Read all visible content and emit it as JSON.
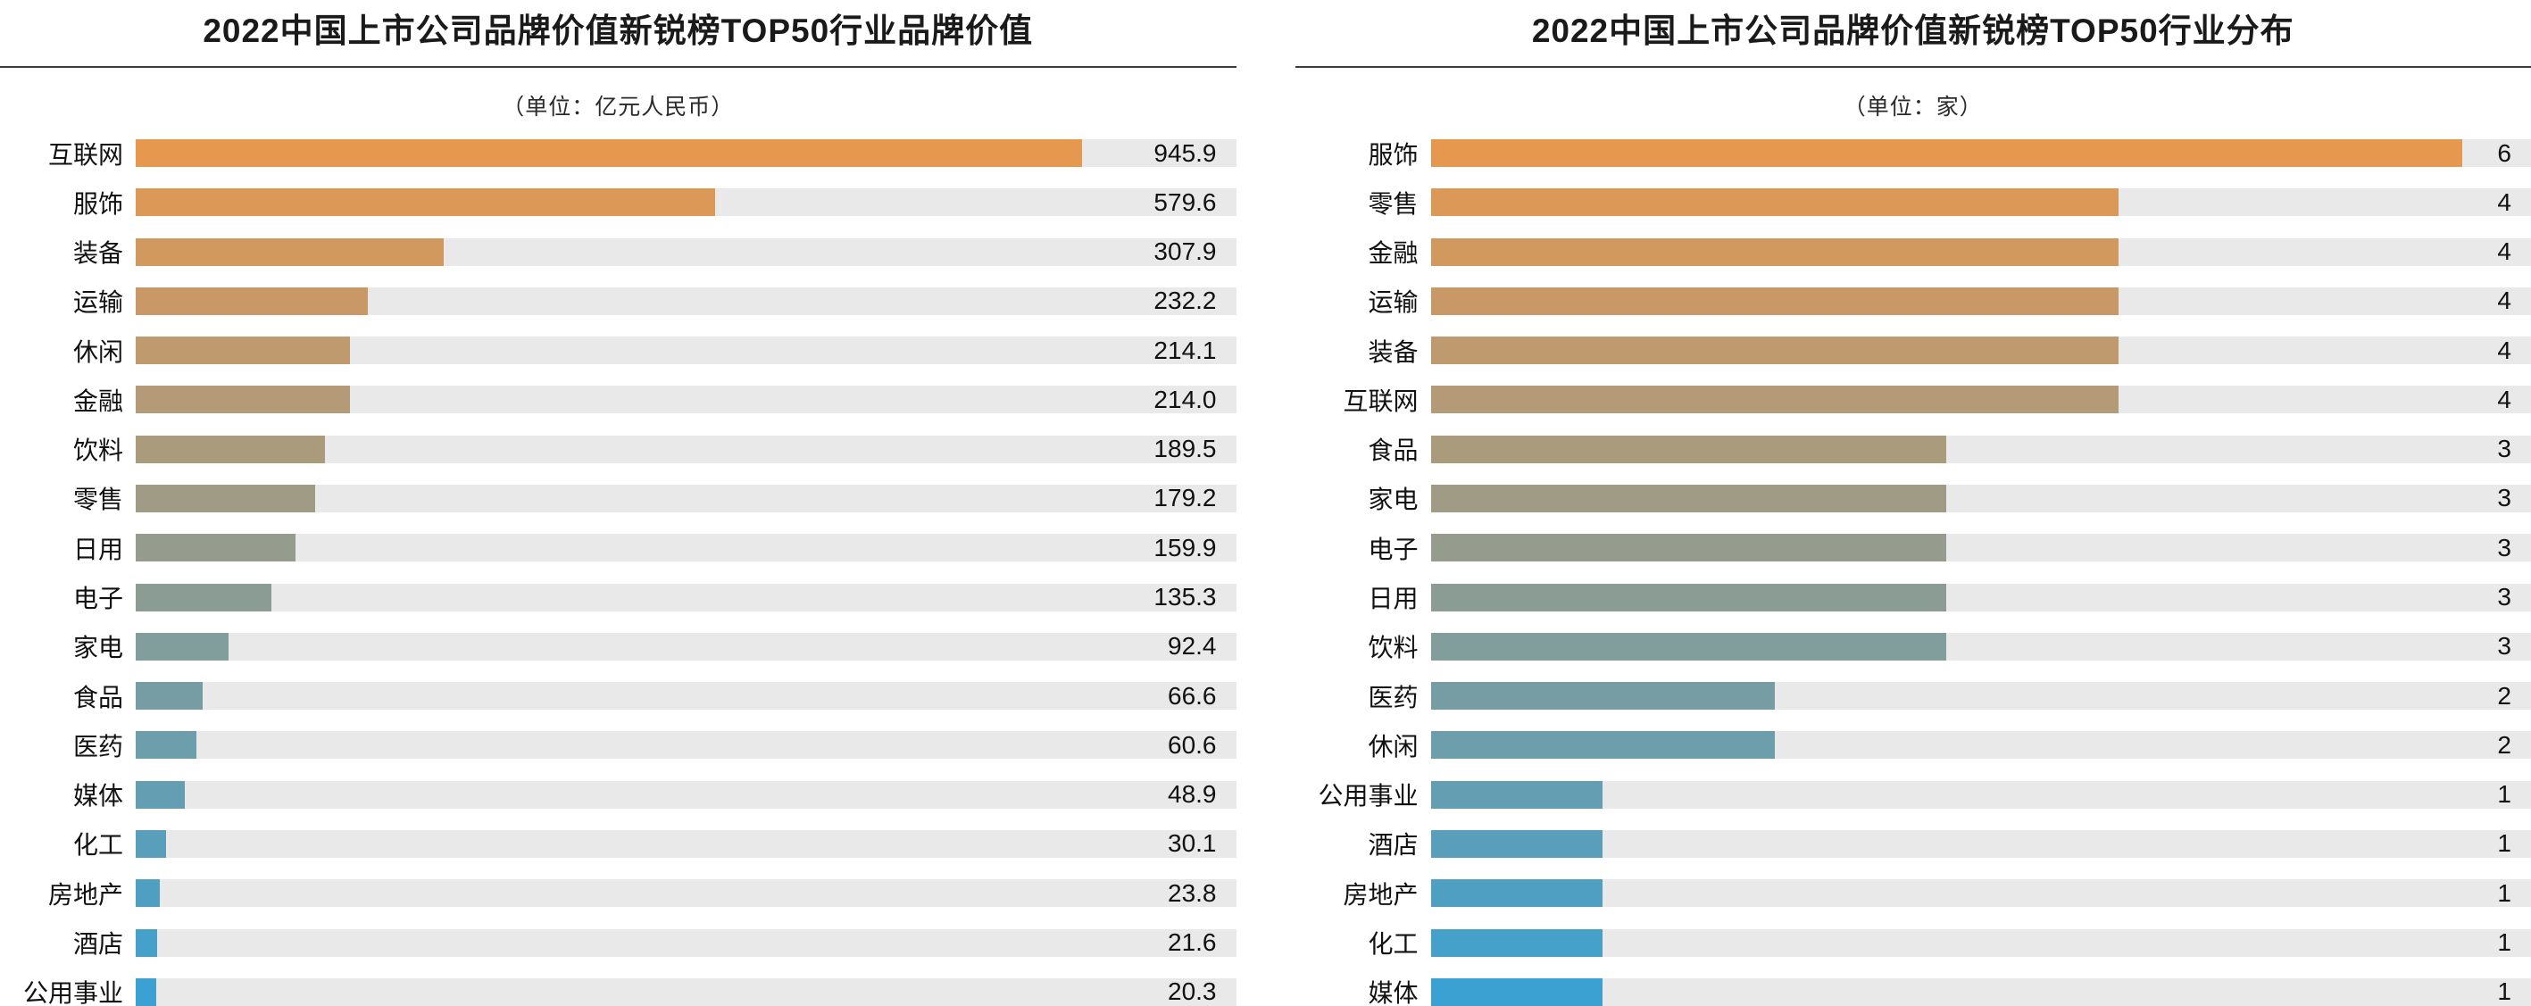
{
  "chart_data": [
    {
      "type": "bar",
      "orientation": "horizontal",
      "title": "2022中国上市公司品牌价值新锐榜TOP50行业品牌价值",
      "unit_label": "（单位：亿元人民币）",
      "categories": [
        "互联网",
        "服饰",
        "装备",
        "运输",
        "休闲",
        "金融",
        "饮料",
        "零售",
        "日用",
        "电子",
        "家电",
        "食品",
        "医药",
        "媒体",
        "化工",
        "房地产",
        "酒店",
        "公用事业"
      ],
      "values": [
        945.9,
        579.6,
        307.9,
        232.2,
        214.1,
        214.0,
        189.5,
        179.2,
        159.9,
        135.3,
        92.4,
        66.6,
        60.6,
        48.9,
        30.1,
        23.8,
        21.6,
        20.3
      ],
      "value_labels": [
        "945.9",
        "579.6",
        "307.9",
        "232.2",
        "214.1",
        "214.0",
        "189.5",
        "179.2",
        "159.9",
        "135.3",
        "92.4",
        "66.6",
        "60.6",
        "48.9",
        "30.1",
        "23.8",
        "21.6",
        "20.3"
      ],
      "xlim": [
        0,
        1100
      ],
      "grid": false,
      "legend": false,
      "value_label_position": "track-right-edge",
      "track_color": "#e9e9e9",
      "color_start": "#e6984f",
      "color_end": "#3ba0d2"
    },
    {
      "type": "bar",
      "orientation": "horizontal",
      "title": "2022中国上市公司品牌价值新锐榜TOP50行业分布",
      "unit_label": "（单位：家）",
      "categories": [
        "服饰",
        "零售",
        "金融",
        "运输",
        "装备",
        "互联网",
        "食品",
        "家电",
        "电子",
        "日用",
        "饮料",
        "医药",
        "休闲",
        "公用事业",
        "酒店",
        "房地产",
        "化工",
        "媒体"
      ],
      "values": [
        6,
        4,
        4,
        4,
        4,
        4,
        3,
        3,
        3,
        3,
        3,
        2,
        2,
        1,
        1,
        1,
        1,
        1
      ],
      "value_labels": [
        "6",
        "4",
        "4",
        "4",
        "4",
        "4",
        "3",
        "3",
        "3",
        "3",
        "3",
        "2",
        "2",
        "1",
        "1",
        "1",
        "1",
        "1"
      ],
      "xlim": [
        0,
        6.4
      ],
      "grid": false,
      "legend": false,
      "value_label_position": "track-right-edge",
      "track_color": "#e9e9e9",
      "color_start": "#e6984f",
      "color_end": "#3ba0d2"
    }
  ]
}
